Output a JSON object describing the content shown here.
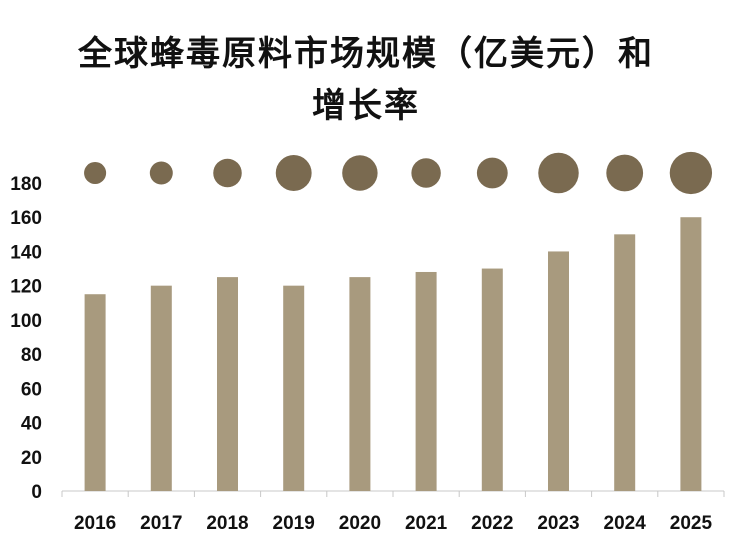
{
  "chart_data": {
    "type": "bar",
    "title_line1": "全球蜂毒原料市场规模（亿美元）和",
    "title_line2": "增长率",
    "categories": [
      "2016",
      "2017",
      "2018",
      "2019",
      "2020",
      "2021",
      "2022",
      "2023",
      "2024",
      "2025"
    ],
    "values": [
      115,
      120,
      125,
      120,
      125,
      128,
      130,
      140,
      150,
      160
    ],
    "ylim": [
      0,
      180
    ],
    "yticks": [
      0,
      20,
      40,
      60,
      80,
      100,
      120,
      140,
      160,
      180
    ],
    "bubble_sizes": [
      0.48,
      0.5,
      0.62,
      0.78,
      0.77,
      0.64,
      0.67,
      0.88,
      0.8,
      0.92
    ],
    "bar_color": "#a89a7e",
    "bubble_color": "#7a6a50",
    "grid": false,
    "legend": "none"
  }
}
